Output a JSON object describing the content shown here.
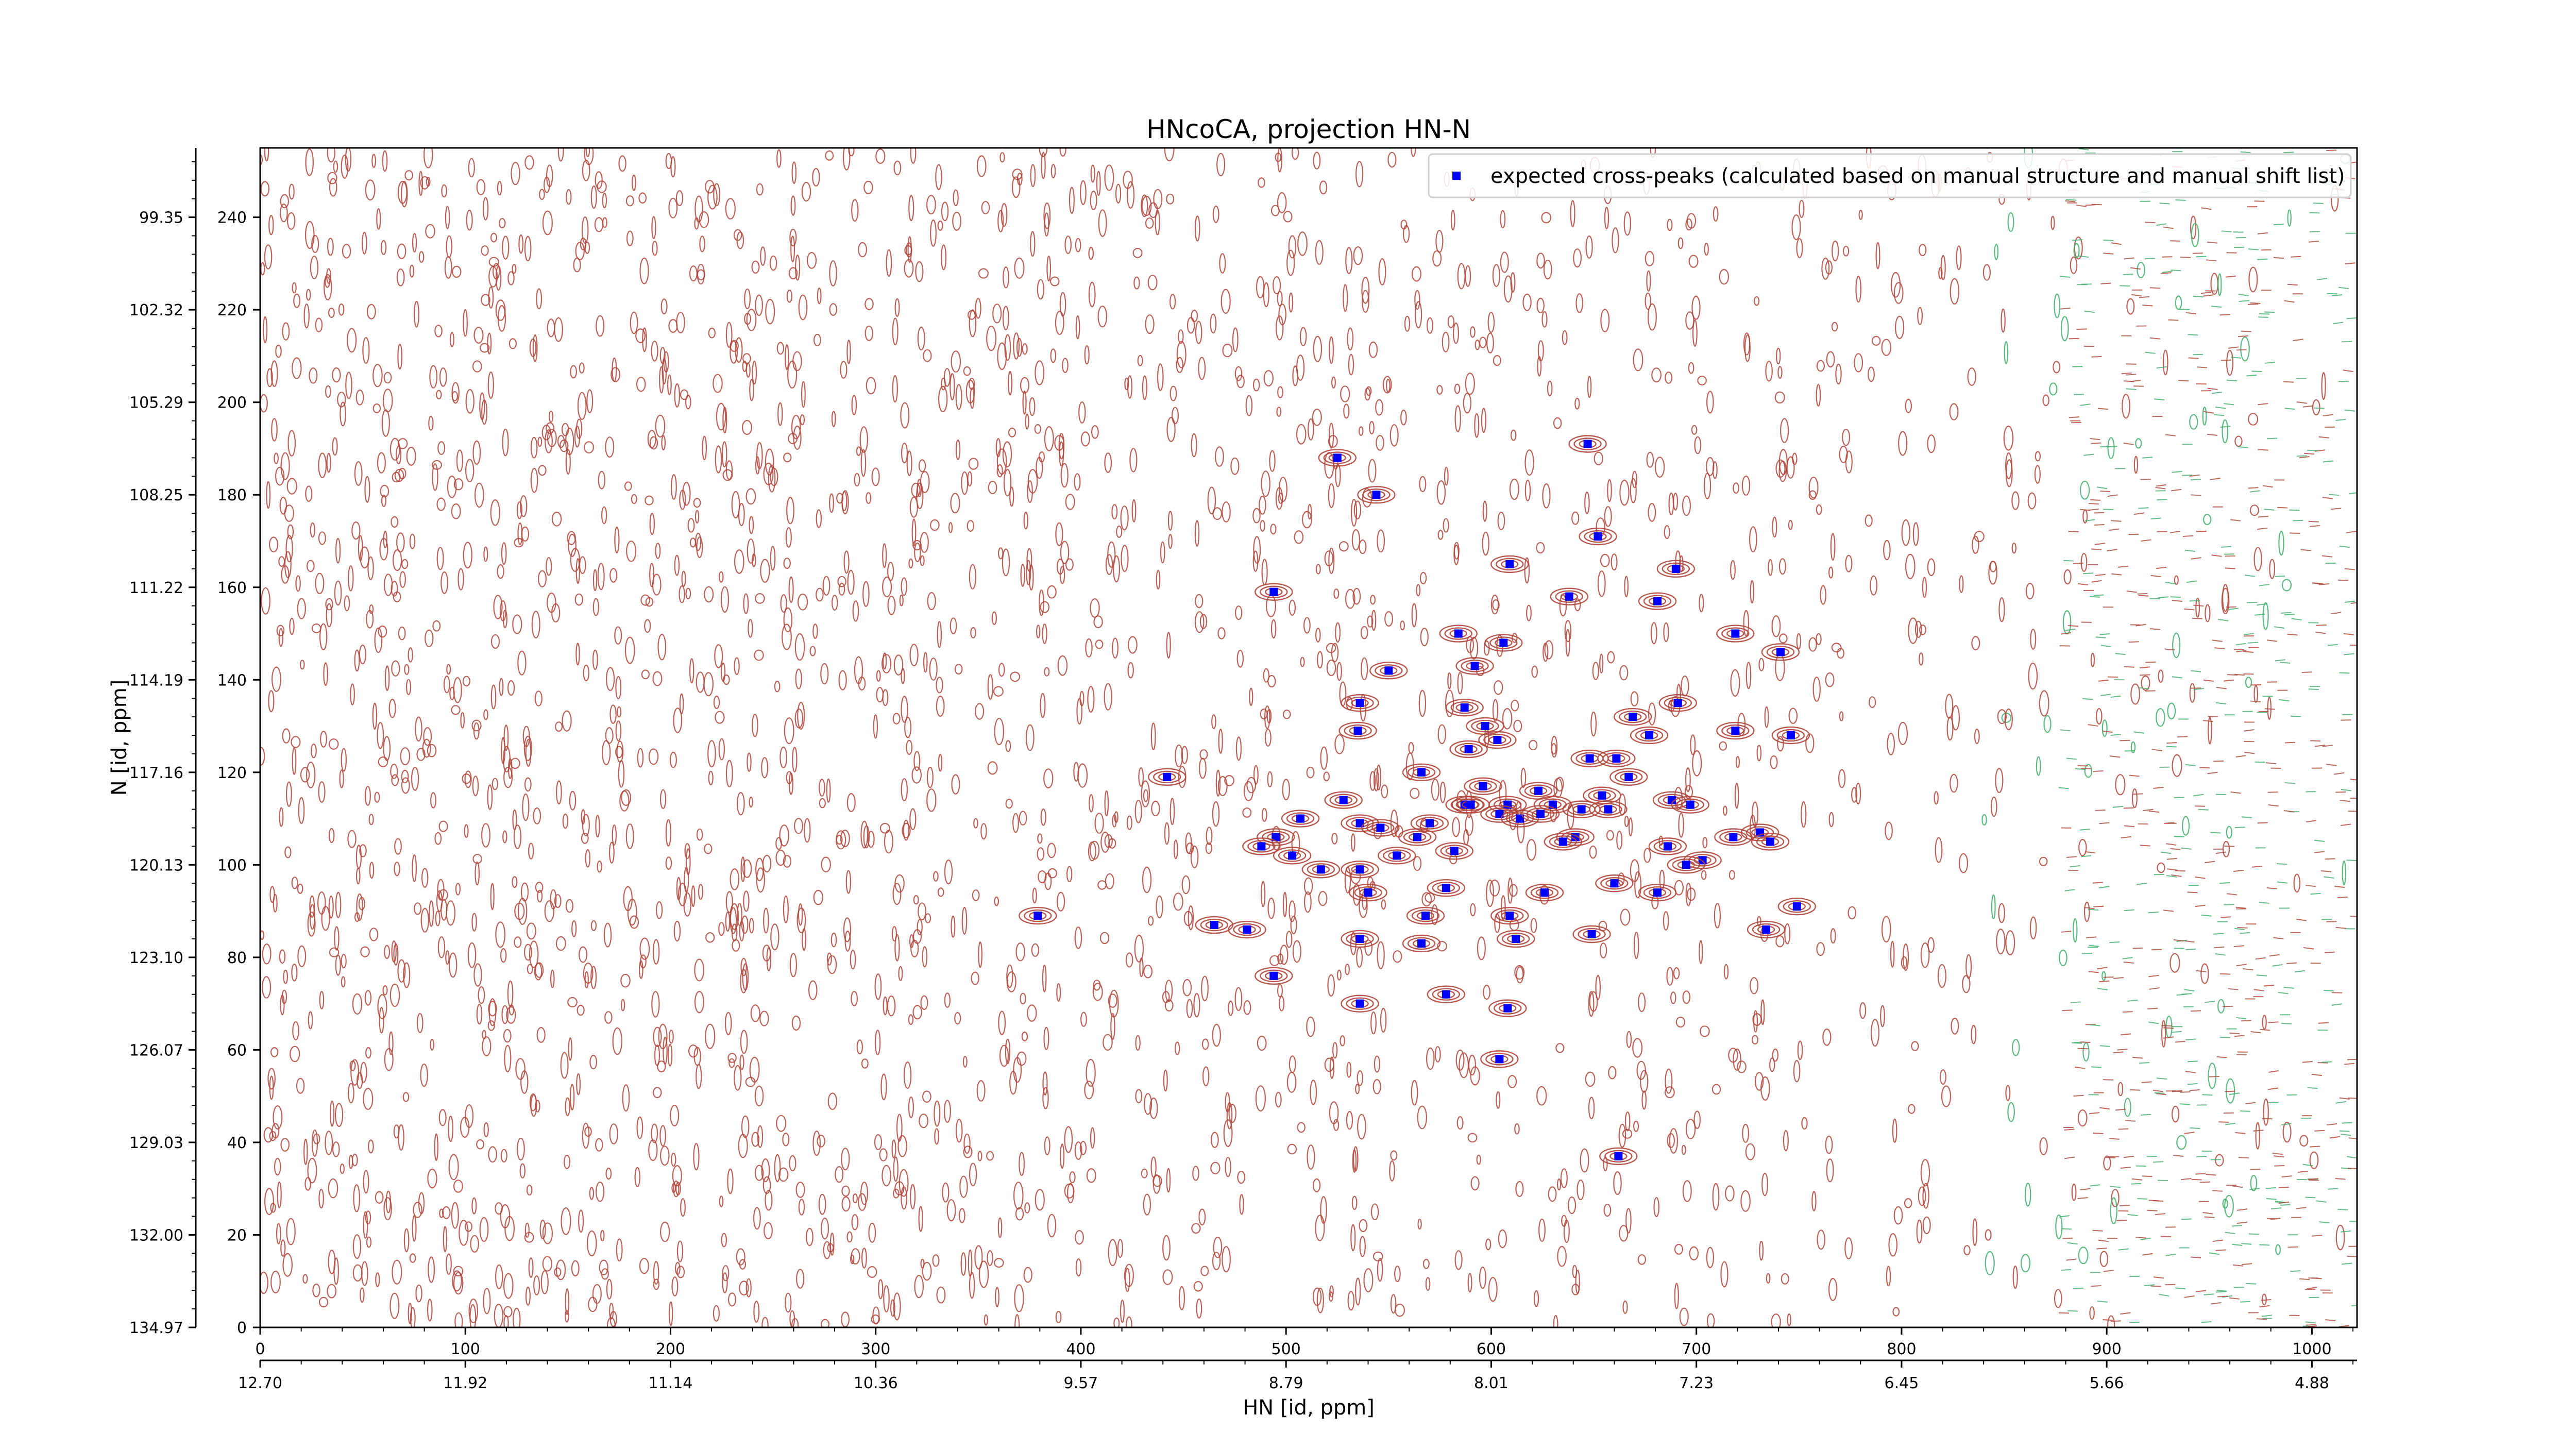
{
  "chart_data": {
    "type": "scatter",
    "title": "HNcoCA, projection HN-N",
    "xlabel": "HN [id, ppm]",
    "ylabel": "N [id, ppm]",
    "xlim": [
      0,
      1022
    ],
    "ylim": [
      0,
      255
    ],
    "x_ticks_points": [
      "0",
      "100",
      "200",
      "300",
      "400",
      "500",
      "600",
      "700",
      "800",
      "900",
      "1000"
    ],
    "y_ticks_points": [
      "0",
      "20",
      "40",
      "60",
      "80",
      "100",
      "120",
      "140",
      "160",
      "180",
      "200",
      "220",
      "240"
    ],
    "x_ticks_ppm": [
      "12.70",
      "11.92",
      "11.14",
      "10.36",
      "9.57",
      "8.79",
      "8.01",
      "7.23",
      "6.45",
      "5.66",
      "4.88"
    ],
    "y_ticks_ppm": [
      "134.97",
      "132.00",
      "129.03",
      "126.07",
      "123.10",
      "120.13",
      "117.16",
      "114.19",
      "111.22",
      "108.25",
      "105.29",
      "102.32",
      "99.35"
    ],
    "legend": {
      "position": "top-right",
      "label": "expected cross-peaks (calculated based on manual structure and manual shift list)"
    },
    "background": "contour",
    "contour_colors": {
      "positive": "#b0453a",
      "negative": "#3fae6a"
    },
    "marker_color": "#0000ff",
    "series": [
      {
        "name": "expected cross-peaks (calculated based on manual structure and manual shift list)",
        "points": [
          {
            "x": 525,
            "y": 188
          },
          {
            "x": 544,
            "y": 180
          },
          {
            "x": 647,
            "y": 191
          },
          {
            "x": 652,
            "y": 171
          },
          {
            "x": 609,
            "y": 165
          },
          {
            "x": 690,
            "y": 164
          },
          {
            "x": 494,
            "y": 159
          },
          {
            "x": 638,
            "y": 158
          },
          {
            "x": 681,
            "y": 157
          },
          {
            "x": 584,
            "y": 150
          },
          {
            "x": 606,
            "y": 148
          },
          {
            "x": 719,
            "y": 150
          },
          {
            "x": 741,
            "y": 146
          },
          {
            "x": 592,
            "y": 143
          },
          {
            "x": 550,
            "y": 142
          },
          {
            "x": 536,
            "y": 135
          },
          {
            "x": 587,
            "y": 134
          },
          {
            "x": 669,
            "y": 132
          },
          {
            "x": 691,
            "y": 135
          },
          {
            "x": 535,
            "y": 129
          },
          {
            "x": 597,
            "y": 130
          },
          {
            "x": 603,
            "y": 127
          },
          {
            "x": 589,
            "y": 125
          },
          {
            "x": 677,
            "y": 128
          },
          {
            "x": 719,
            "y": 129
          },
          {
            "x": 746,
            "y": 128
          },
          {
            "x": 442,
            "y": 119
          },
          {
            "x": 566,
            "y": 120
          },
          {
            "x": 648,
            "y": 123
          },
          {
            "x": 661,
            "y": 123
          },
          {
            "x": 667,
            "y": 119
          },
          {
            "x": 596,
            "y": 117
          },
          {
            "x": 623,
            "y": 116
          },
          {
            "x": 654,
            "y": 115
          },
          {
            "x": 688,
            "y": 114
          },
          {
            "x": 697,
            "y": 113
          },
          {
            "x": 587,
            "y": 113
          },
          {
            "x": 590,
            "y": 113
          },
          {
            "x": 608,
            "y": 113
          },
          {
            "x": 630,
            "y": 113
          },
          {
            "x": 644,
            "y": 112
          },
          {
            "x": 528,
            "y": 114
          },
          {
            "x": 604,
            "y": 111
          },
          {
            "x": 614,
            "y": 110
          },
          {
            "x": 624,
            "y": 111
          },
          {
            "x": 657,
            "y": 112
          },
          {
            "x": 507,
            "y": 110
          },
          {
            "x": 536,
            "y": 109
          },
          {
            "x": 546,
            "y": 108
          },
          {
            "x": 570,
            "y": 109
          },
          {
            "x": 564,
            "y": 106
          },
          {
            "x": 641,
            "y": 106
          },
          {
            "x": 635,
            "y": 105
          },
          {
            "x": 495,
            "y": 106
          },
          {
            "x": 488,
            "y": 104
          },
          {
            "x": 718,
            "y": 106
          },
          {
            "x": 731,
            "y": 107
          },
          {
            "x": 736,
            "y": 105
          },
          {
            "x": 686,
            "y": 104
          },
          {
            "x": 703,
            "y": 101
          },
          {
            "x": 695,
            "y": 100
          },
          {
            "x": 582,
            "y": 103
          },
          {
            "x": 554,
            "y": 102
          },
          {
            "x": 503,
            "y": 102
          },
          {
            "x": 517,
            "y": 99
          },
          {
            "x": 536,
            "y": 99
          },
          {
            "x": 660,
            "y": 96
          },
          {
            "x": 540,
            "y": 94
          },
          {
            "x": 578,
            "y": 95
          },
          {
            "x": 626,
            "y": 94
          },
          {
            "x": 681,
            "y": 94
          },
          {
            "x": 379,
            "y": 89
          },
          {
            "x": 568,
            "y": 89
          },
          {
            "x": 609,
            "y": 89
          },
          {
            "x": 465,
            "y": 87
          },
          {
            "x": 481,
            "y": 86
          },
          {
            "x": 649,
            "y": 85
          },
          {
            "x": 734,
            "y": 86
          },
          {
            "x": 749,
            "y": 91
          },
          {
            "x": 536,
            "y": 84
          },
          {
            "x": 566,
            "y": 83
          },
          {
            "x": 612,
            "y": 84
          },
          {
            "x": 494,
            "y": 76
          },
          {
            "x": 578,
            "y": 72
          },
          {
            "x": 536,
            "y": 70
          },
          {
            "x": 608,
            "y": 69
          },
          {
            "x": 604,
            "y": 58
          },
          {
            "x": 662,
            "y": 37
          }
        ]
      }
    ]
  }
}
